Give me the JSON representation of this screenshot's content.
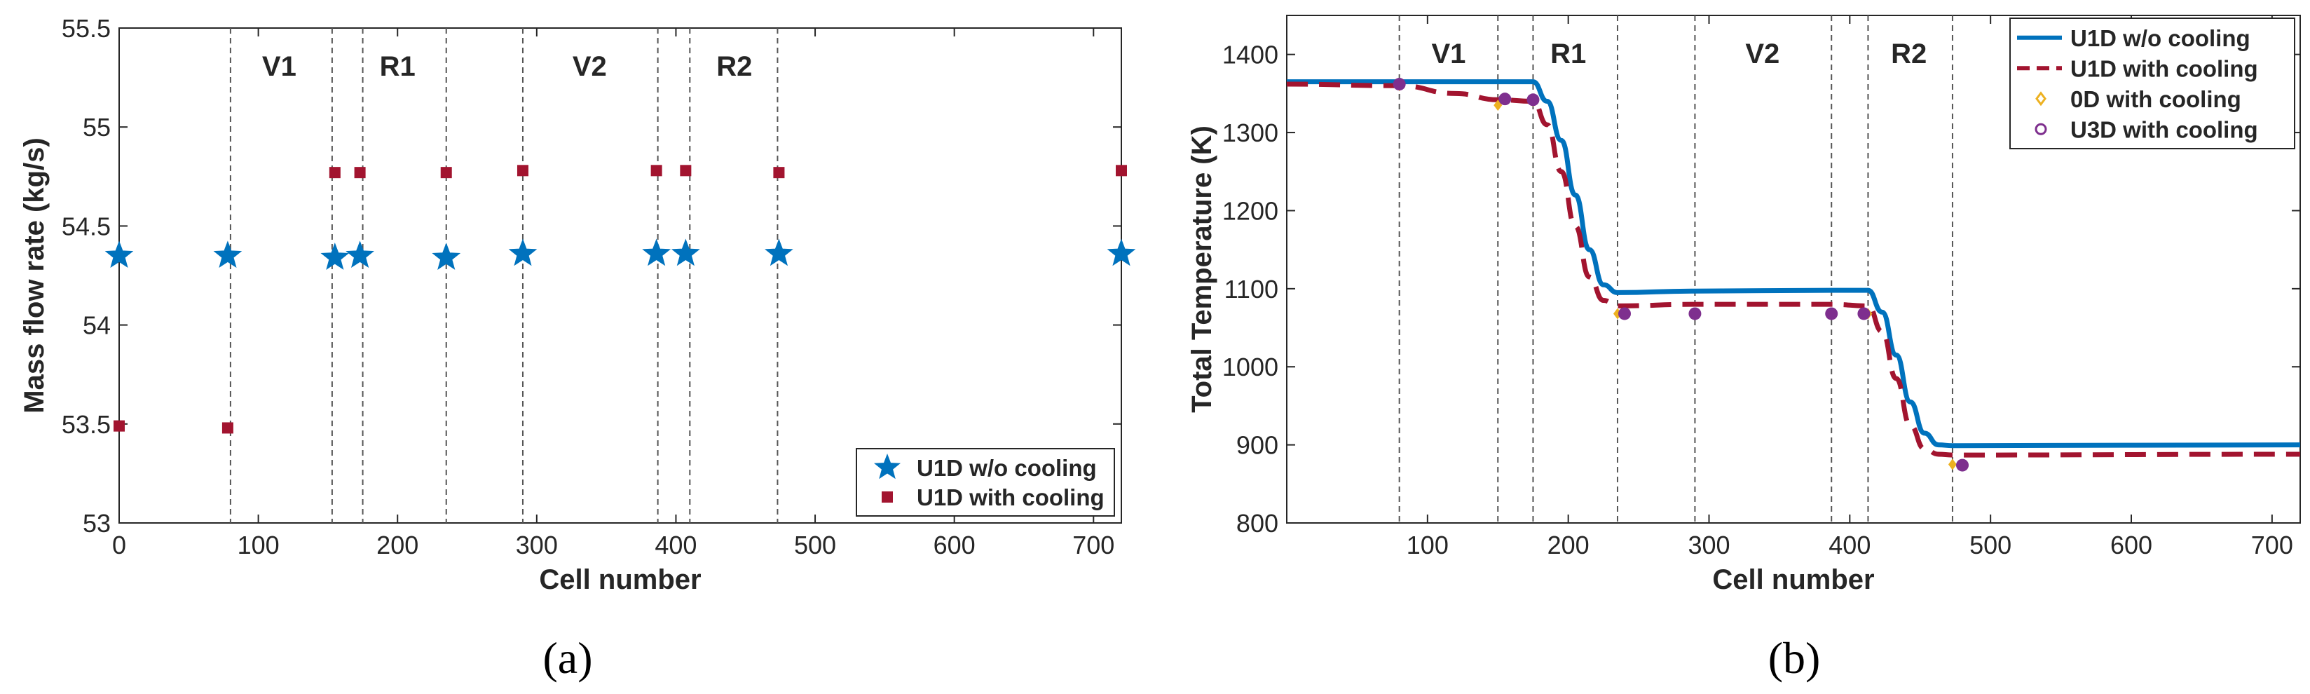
{
  "chart_data": [
    {
      "type": "scatter",
      "panel_caption": "(a)",
      "xlabel": "Cell number",
      "ylabel": "Mass flow rate (kg/s)",
      "xlim": [
        0,
        720
      ],
      "ylim": [
        53,
        55.5
      ],
      "xticks": [
        0,
        100,
        200,
        300,
        400,
        500,
        600,
        700
      ],
      "yticks": [
        53,
        53.5,
        54,
        54.5,
        55,
        55.5
      ],
      "ytick_labels": [
        "53",
        "53.5",
        "54",
        "54.5",
        "55",
        "55.5"
      ],
      "vlines": [
        80,
        153,
        175,
        235,
        290,
        387,
        410,
        473
      ],
      "regions": [
        {
          "label": "V1",
          "x": 115
        },
        {
          "label": "R1",
          "x": 200
        },
        {
          "label": "V2",
          "x": 338
        },
        {
          "label": "R2",
          "x": 442
        }
      ],
      "legend_position": "bottom-right",
      "series": [
        {
          "name": "U1D w/o cooling",
          "marker": "star",
          "color": "#0072BD",
          "x": [
            0,
            78,
            155,
            173,
            235,
            290,
            386,
            407,
            474,
            720
          ],
          "y": [
            54.35,
            54.35,
            54.34,
            54.35,
            54.34,
            54.36,
            54.36,
            54.36,
            54.36,
            54.36
          ]
        },
        {
          "name": "U1D with cooling",
          "marker": "square",
          "color": "#A2142F",
          "x": [
            0,
            78,
            155,
            173,
            235,
            290,
            386,
            407,
            474,
            720
          ],
          "y": [
            53.49,
            53.48,
            54.77,
            54.77,
            54.77,
            54.78,
            54.78,
            54.78,
            54.77,
            54.78
          ]
        }
      ]
    },
    {
      "type": "line",
      "panel_caption": "(b)",
      "xlabel": "Cell number",
      "ylabel": "Total Temperature (K)",
      "xlim": [
        0,
        720
      ],
      "ylim": [
        800,
        1450
      ],
      "xticks": [
        100,
        200,
        300,
        400,
        500,
        600,
        700
      ],
      "yticks": [
        800,
        900,
        1000,
        1100,
        1200,
        1300,
        1400
      ],
      "vlines": [
        80,
        150,
        175,
        235,
        290,
        387,
        413,
        473
      ],
      "regions": [
        {
          "label": "V1",
          "x": 115
        },
        {
          "label": "R1",
          "x": 200
        },
        {
          "label": "V2",
          "x": 338
        },
        {
          "label": "R2",
          "x": 442
        }
      ],
      "legend_position": "top-right",
      "series": [
        {
          "name": "U1D w/o cooling",
          "style": "solid-line",
          "color": "#0072BD",
          "x": [
            0,
            80,
            150,
            175,
            185,
            195,
            205,
            215,
            225,
            235,
            290,
            387,
            413,
            423,
            433,
            443,
            453,
            463,
            473,
            720
          ],
          "y": [
            1365,
            1365,
            1365,
            1365,
            1340,
            1290,
            1220,
            1150,
            1105,
            1095,
            1097,
            1098,
            1098,
            1070,
            1015,
            955,
            915,
            900,
            899,
            900
          ]
        },
        {
          "name": "U1D with cooling",
          "style": "dashed-line",
          "color": "#A2142F",
          "x": [
            0,
            80,
            120,
            150,
            175,
            185,
            195,
            205,
            215,
            225,
            235,
            290,
            387,
            413,
            423,
            433,
            443,
            453,
            463,
            473,
            720
          ],
          "y": [
            1362,
            1360,
            1350,
            1342,
            1340,
            1310,
            1250,
            1180,
            1115,
            1085,
            1078,
            1080,
            1080,
            1078,
            1045,
            985,
            925,
            895,
            888,
            887,
            888
          ]
        },
        {
          "name": "0D with cooling",
          "style": "diamond-marker",
          "color": "#EDB120",
          "x": [
            80,
            150,
            175,
            235,
            290,
            387,
            413,
            473
          ],
          "y": [
            1360,
            1335,
            1340,
            1068,
            1068,
            1068,
            1068,
            875
          ]
        },
        {
          "name": "U3D with cooling",
          "style": "circle-marker",
          "color": "#7E2F8E",
          "x": [
            80,
            155,
            175,
            240,
            290,
            387,
            410,
            480
          ],
          "y": [
            1362,
            1343,
            1342,
            1068,
            1068,
            1068,
            1068,
            874
          ]
        }
      ]
    }
  ]
}
